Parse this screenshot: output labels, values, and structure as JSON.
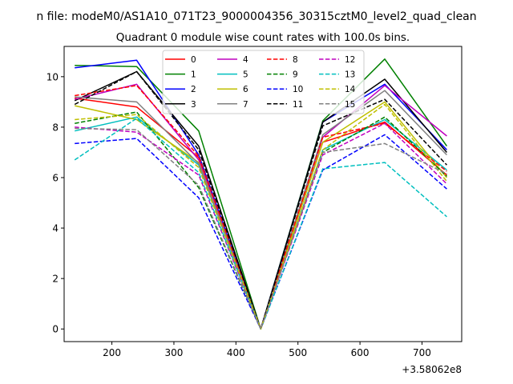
{
  "chart_data": {
    "type": "line",
    "suptitle": "n file: modeM0/AS1A10_071T23_9000004356_30315cztM0_level2_quad_clean",
    "title": "Quadrant 0 module wise count rates with 100.0s bins.",
    "xlabel": "",
    "ylabel": "",
    "x_offset_label": "+3.58062e8",
    "xlim": [
      123,
      764
    ],
    "ylim": [
      -0.5,
      11.2
    ],
    "x_ticks": [
      200,
      300,
      400,
      500,
      600,
      700
    ],
    "y_ticks": [
      0,
      2,
      4,
      6,
      8,
      10
    ],
    "x": [
      140,
      240,
      340,
      440,
      540,
      640,
      740
    ],
    "series": [
      {
        "name": "0",
        "color": "#ff0000",
        "dash": "solid",
        "values": [
          9.15,
          8.8,
          6.8,
          0.0,
          7.4,
          8.2,
          6.1
        ]
      },
      {
        "name": "1",
        "color": "#008000",
        "dash": "solid",
        "values": [
          10.45,
          10.4,
          7.85,
          0.0,
          8.25,
          10.7,
          7.25
        ]
      },
      {
        "name": "2",
        "color": "#0000ff",
        "dash": "solid",
        "values": [
          10.35,
          10.65,
          6.9,
          0.0,
          8.2,
          9.7,
          7.1
        ]
      },
      {
        "name": "3",
        "color": "#000000",
        "dash": "solid",
        "values": [
          9.05,
          10.2,
          7.25,
          0.0,
          8.2,
          9.9,
          7.0
        ]
      },
      {
        "name": "4",
        "color": "#bf00bf",
        "dash": "solid",
        "values": [
          9.1,
          9.7,
          6.7,
          0.0,
          7.6,
          9.65,
          7.65
        ]
      },
      {
        "name": "5",
        "color": "#00bfbf",
        "dash": "solid",
        "values": [
          7.85,
          8.4,
          6.5,
          0.0,
          7.1,
          8.3,
          6.3
        ]
      },
      {
        "name": "6",
        "color": "#bfbf00",
        "dash": "solid",
        "values": [
          8.85,
          8.3,
          6.6,
          0.0,
          7.4,
          9.0,
          6.0
        ]
      },
      {
        "name": "7",
        "color": "#808080",
        "dash": "solid",
        "values": [
          9.2,
          9.0,
          6.55,
          0.0,
          7.7,
          9.45,
          6.9
        ]
      },
      {
        "name": "8",
        "color": "#ff0000",
        "dash": "dashed",
        "values": [
          9.25,
          9.65,
          6.85,
          0.0,
          7.6,
          8.15,
          6.25
        ]
      },
      {
        "name": "9",
        "color": "#008000",
        "dash": "dashed",
        "values": [
          8.15,
          8.6,
          5.6,
          0.0,
          7.0,
          8.4,
          6.05
        ]
      },
      {
        "name": "10",
        "color": "#0000ff",
        "dash": "dashed",
        "values": [
          7.35,
          7.55,
          5.2,
          0.0,
          6.3,
          7.7,
          5.55
        ]
      },
      {
        "name": "11",
        "color": "#000000",
        "dash": "dashed",
        "values": [
          8.9,
          10.2,
          7.1,
          0.0,
          8.05,
          9.1,
          6.5
        ]
      },
      {
        "name": "12",
        "color": "#bf00bf",
        "dash": "dashed",
        "values": [
          8.0,
          7.8,
          6.1,
          0.0,
          6.9,
          8.15,
          5.75
        ]
      },
      {
        "name": "13",
        "color": "#00bfbf",
        "dash": "dashed",
        "values": [
          6.7,
          8.35,
          6.2,
          0.0,
          6.35,
          6.6,
          4.45
        ]
      },
      {
        "name": "14",
        "color": "#bfbf00",
        "dash": "dashed",
        "values": [
          8.3,
          8.5,
          6.4,
          0.0,
          7.1,
          8.9,
          5.85
        ]
      },
      {
        "name": "15",
        "color": "#808080",
        "dash": "dashed",
        "values": [
          7.95,
          7.9,
          5.7,
          0.0,
          7.0,
          7.35,
          6.15
        ]
      }
    ]
  }
}
